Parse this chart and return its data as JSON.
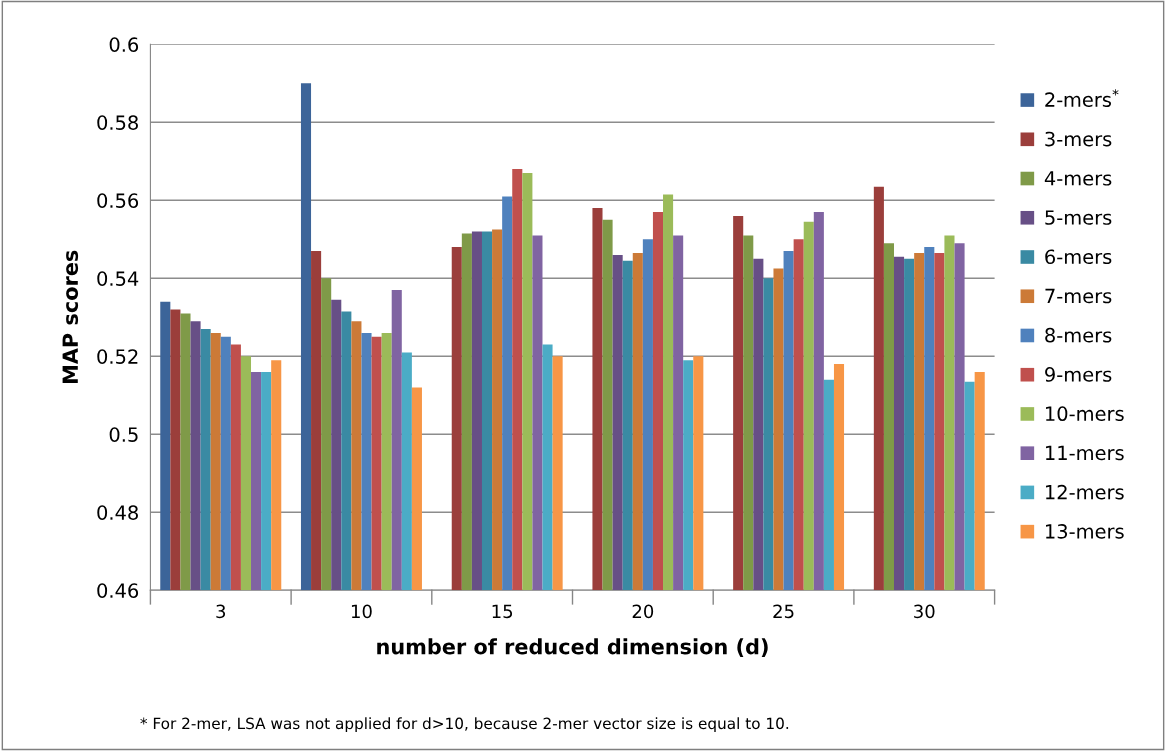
{
  "chart_data": {
    "type": "bar",
    "xlabel": "number of reduced dimension (d)",
    "ylabel": "MAP scores",
    "categories": [
      "3",
      "10",
      "15",
      "20",
      "25",
      "30"
    ],
    "series": [
      {
        "name": "2-mers$^{*}$",
        "color": "#3c6499",
        "values": [
          0.534,
          0.59,
          null,
          null,
          null,
          null
        ]
      },
      {
        "name": "3-mers",
        "color": "#9b3e3b",
        "values": [
          0.532,
          0.547,
          0.548,
          0.558,
          0.556,
          0.5635
        ]
      },
      {
        "name": "4-mers",
        "color": "#7f9a48",
        "values": [
          0.531,
          0.54,
          0.5515,
          0.555,
          0.551,
          0.549
        ]
      },
      {
        "name": "5-mers",
        "color": "#674f86",
        "values": [
          0.529,
          0.5345,
          0.552,
          0.546,
          0.545,
          0.5455
        ]
      },
      {
        "name": "6-mers",
        "color": "#3a8aa3",
        "values": [
          0.527,
          0.5315,
          0.552,
          0.5445,
          0.54,
          0.545
        ]
      },
      {
        "name": "7-mers",
        "color": "#cc7a37",
        "values": [
          0.526,
          0.529,
          0.5525,
          0.5465,
          0.5425,
          0.5465
        ]
      },
      {
        "name": "8-mers",
        "color": "#4f81bd",
        "values": [
          0.525,
          0.526,
          0.561,
          0.55,
          0.547,
          0.548
        ]
      },
      {
        "name": "9-mers",
        "color": "#c0504d",
        "values": [
          0.523,
          0.525,
          0.568,
          0.557,
          0.55,
          0.5465
        ]
      },
      {
        "name": "10-mers",
        "color": "#9bbb59",
        "values": [
          0.52,
          0.526,
          0.567,
          0.5615,
          0.5545,
          0.551
        ]
      },
      {
        "name": "11-mers",
        "color": "#8064a2",
        "values": [
          0.516,
          0.537,
          0.551,
          0.551,
          0.557,
          0.549
        ]
      },
      {
        "name": "12-mers",
        "color": "#4bacc6",
        "values": [
          0.516,
          0.521,
          0.523,
          0.519,
          0.514,
          0.5135
        ]
      },
      {
        "name": "13-mers",
        "color": "#f79646",
        "values": [
          0.519,
          0.512,
          0.52,
          0.52,
          0.518,
          0.516
        ]
      }
    ],
    "ylim": [
      0.46,
      0.6
    ],
    "yticks": [
      0.46,
      0.48,
      0.5,
      0.52,
      0.54,
      0.56,
      0.58,
      0.6
    ],
    "grid": "y",
    "legend": "right",
    "annotations": [
      "* For 2-mer, LSA was not applied for d>10, because 2-mer vector size is equal to 10."
    ]
  }
}
